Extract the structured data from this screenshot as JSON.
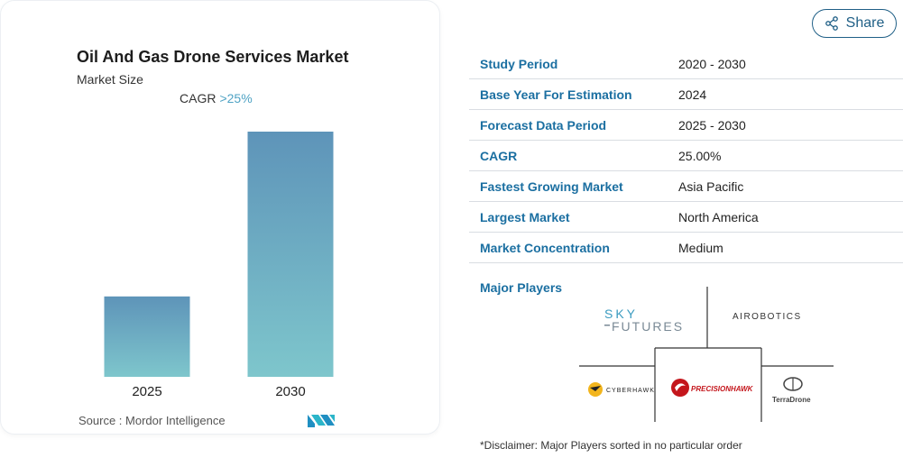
{
  "chart_card": {
    "title": "Oil And Gas Drone Services Market",
    "subtitle": "Market Size",
    "cagr_label": "CAGR",
    "cagr_value": ">25%",
    "source": "Source :  Mordor Intelligence",
    "logo": "mordor-intelligence-logo"
  },
  "chart_data": {
    "type": "bar",
    "categories": [
      "2025",
      "2030"
    ],
    "values": [
      1,
      3.05
    ],
    "title": "Oil And Gas Drone Services Market",
    "subtitle": "Market Size",
    "xlabel": "",
    "ylabel": "",
    "grid": false,
    "legend": "none",
    "colors": {
      "top": "#5e94b9",
      "bottom": "#7ec6cc"
    }
  },
  "share": {
    "label": "Share",
    "icon": "share-icon"
  },
  "info_table": [
    {
      "label": "Study Period",
      "value": "2020 - 2030"
    },
    {
      "label": "Base Year For Estimation",
      "value": "2024"
    },
    {
      "label": "Forecast Data Period",
      "value": "2025 - 2030"
    },
    {
      "label": "CAGR",
      "value": "25.00%"
    },
    {
      "label": "Fastest Growing Market",
      "value": "Asia Pacific"
    },
    {
      "label": "Largest Market",
      "value": "North America"
    },
    {
      "label": "Market Concentration",
      "value": "Medium"
    }
  ],
  "players": {
    "label": "Major Players",
    "sky_futures_line1": "SKY",
    "sky_futures_line2": "FUTURES",
    "airobotics": "AIROBOTICS",
    "cyberhawk": "CYBERHAWK",
    "precisionhawk": "PRECISIONHAWK",
    "terradrone": "TerraDrone"
  },
  "disclaimer": "*Disclaimer: Major Players sorted in no particular order",
  "accent_colors": {
    "label_blue": "#1b6fa1",
    "share_border": "#1f5f86",
    "cagr_value": "#4fa3c4"
  }
}
